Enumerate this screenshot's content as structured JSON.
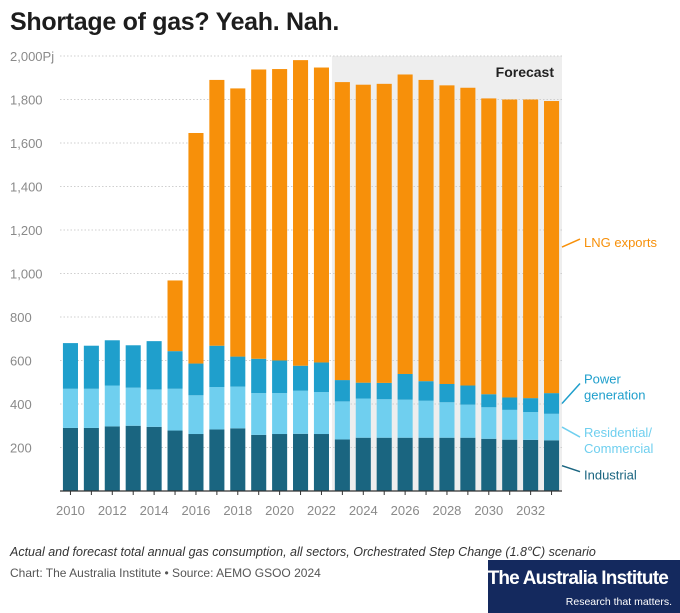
{
  "title": "Shortage of gas? Yeah. Nah.",
  "caption": "Actual and forecast total annual gas consumption, all sectors, Orchestrated Step Change (1.8℃) scenario",
  "source": "Chart: The Australia Institute • Source: AEMO GSOO 2024",
  "logo": {
    "name": "The Australia Institute",
    "tagline": "Research that matters."
  },
  "chart_data": {
    "type": "bar",
    "stacked": true,
    "title": "Shortage of gas? Yeah. Nah.",
    "xlabel": "",
    "ylabel": "",
    "ylim": [
      0,
      2000
    ],
    "yticks": [
      200,
      400,
      600,
      800,
      1000,
      1200,
      1400,
      1600,
      1800,
      2000
    ],
    "ytick_labels": [
      "200",
      "400",
      "600",
      "800",
      "1,000",
      "1,200",
      "1,400",
      "1,600",
      "1,800",
      "2,000Pj"
    ],
    "xticks": [
      "2010",
      "2012",
      "2014",
      "2016",
      "2018",
      "2020",
      "2022",
      "2024",
      "2026",
      "2028",
      "2030",
      "2032"
    ],
    "grid": true,
    "forecast_label": "Forecast",
    "forecast_start": 2023,
    "categories": [
      2010,
      2011,
      2012,
      2013,
      2014,
      2015,
      2016,
      2017,
      2018,
      2019,
      2020,
      2021,
      2022,
      2023,
      2024,
      2025,
      2026,
      2027,
      2028,
      2029,
      2030,
      2031,
      2032,
      2033
    ],
    "series": [
      {
        "name": "Industrial",
        "label": "Industrial",
        "color": "#1a6580",
        "values": [
          290,
          290,
          297,
          300,
          295,
          278,
          262,
          283,
          288,
          258,
          262,
          263,
          262,
          237,
          245,
          245,
          245,
          245,
          245,
          245,
          240,
          236,
          235,
          233
        ]
      },
      {
        "name": "Residential/Commercial",
        "label": "Residential/ Commercial",
        "color": "#6fcfef",
        "values": [
          180,
          180,
          188,
          175,
          172,
          192,
          178,
          195,
          192,
          192,
          188,
          198,
          193,
          175,
          180,
          177,
          175,
          170,
          163,
          152,
          145,
          137,
          128,
          122
        ]
      },
      {
        "name": "Power generation",
        "label": "Power generation",
        "color": "#1f9fcc",
        "values": [
          210,
          198,
          208,
          195,
          222,
          173,
          146,
          190,
          138,
          158,
          150,
          115,
          136,
          98,
          73,
          75,
          118,
          90,
          84,
          88,
          60,
          57,
          64,
          95
        ]
      },
      {
        "name": "LNG exports",
        "label": "LNG exports",
        "color": "#f7900a",
        "values": [
          0,
          0,
          0,
          0,
          0,
          325,
          1060,
          1222,
          1233,
          1330,
          1340,
          1405,
          1356,
          1370,
          1370,
          1375,
          1377,
          1385,
          1373,
          1369,
          1360,
          1370,
          1373,
          1343
        ]
      }
    ]
  }
}
